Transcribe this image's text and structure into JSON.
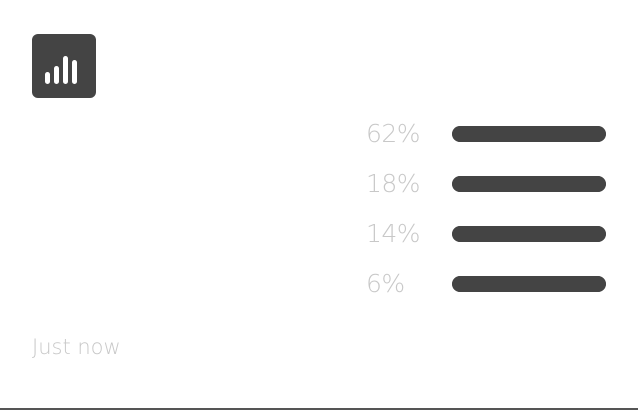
{
  "poll": {
    "icon": "bar-chart-icon",
    "results": [
      {
        "percent_label": "62%",
        "fill": 1.0
      },
      {
        "percent_label": "18%",
        "fill": 1.0
      },
      {
        "percent_label": "14%",
        "fill": 1.0
      },
      {
        "percent_label": "6%",
        "fill": 1.0
      }
    ],
    "timestamp": "Just now"
  },
  "colors": {
    "bar": "#444444",
    "muted_text": "#c8c8c8",
    "icon_bg": "#444444",
    "divider": "#555555"
  }
}
